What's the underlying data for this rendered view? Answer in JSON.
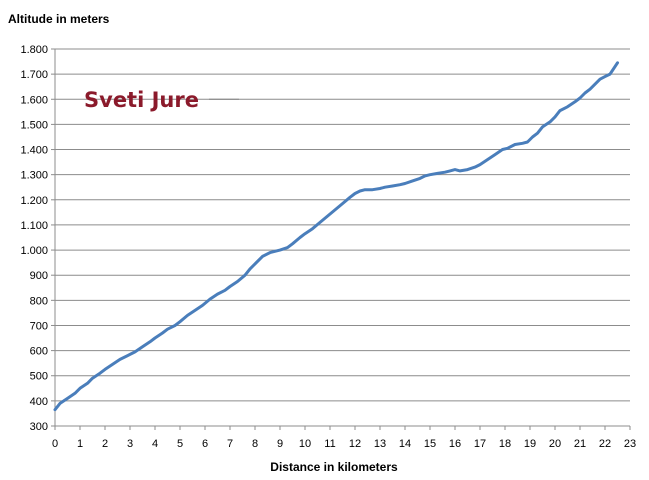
{
  "chart_data": {
    "type": "line",
    "title": "",
    "ylabel": "Altitude in meters",
    "xlabel": "Distance in kilometers",
    "annotation": "Sveti Jure",
    "xlim": [
      0,
      23
    ],
    "ylim": [
      300,
      1800
    ],
    "x_ticks": [
      "0",
      "1",
      "2",
      "3",
      "4",
      "5",
      "6",
      "7",
      "8",
      "9",
      "10",
      "11",
      "12",
      "13",
      "14",
      "15",
      "16",
      "17",
      "18",
      "19",
      "20",
      "21",
      "22",
      "23"
    ],
    "y_ticks": [
      "300",
      "400",
      "500",
      "600",
      "700",
      "800",
      "900",
      "1.000",
      "1.100",
      "1.200",
      "1.300",
      "1.400",
      "1.500",
      "1.600",
      "1.700",
      "1.800"
    ],
    "grid": "horizontal",
    "line_color": "#4a7ebb",
    "series": [
      {
        "x": [
          0.0,
          0.2,
          0.5,
          0.8,
          1.0,
          1.3,
          1.5,
          1.8,
          2.0,
          2.3,
          2.6,
          3.0,
          3.2,
          3.5,
          3.8,
          4.0,
          4.3,
          4.5,
          4.8,
          5.0,
          5.3,
          5.6,
          5.9,
          6.2,
          6.5,
          6.8,
          7.0,
          7.3,
          7.6,
          7.8,
          8.0,
          8.3,
          8.6,
          9.0,
          9.3,
          9.5,
          9.8,
          10.0,
          10.3,
          10.6,
          10.9,
          11.2,
          11.5,
          11.8,
          12.0,
          12.2,
          12.4,
          12.7,
          13.0,
          13.2,
          13.5,
          13.8,
          14.0,
          14.3,
          14.6,
          14.8,
          15.0,
          15.3,
          15.6,
          15.8,
          16.0,
          16.2,
          16.5,
          16.8,
          17.0,
          17.3,
          17.6,
          17.9,
          18.1,
          18.4,
          18.7,
          18.9,
          19.1,
          19.3,
          19.5,
          19.8,
          20.0,
          20.2,
          20.5,
          20.8,
          21.0,
          21.2,
          21.4,
          21.6,
          21.8,
          22.0,
          22.2,
          22.3,
          22.5
        ],
        "y": [
          365,
          390,
          410,
          430,
          450,
          470,
          490,
          510,
          525,
          545,
          565,
          585,
          595,
          615,
          635,
          650,
          670,
          685,
          700,
          715,
          740,
          760,
          780,
          805,
          825,
          840,
          855,
          875,
          900,
          925,
          945,
          975,
          990,
          1000,
          1010,
          1025,
          1050,
          1065,
          1085,
          1110,
          1135,
          1160,
          1185,
          1210,
          1225,
          1235,
          1240,
          1240,
          1245,
          1250,
          1255,
          1260,
          1265,
          1275,
          1285,
          1295,
          1300,
          1305,
          1310,
          1315,
          1320,
          1315,
          1320,
          1330,
          1340,
          1360,
          1380,
          1400,
          1405,
          1420,
          1425,
          1430,
          1450,
          1465,
          1490,
          1510,
          1530,
          1555,
          1570,
          1590,
          1605,
          1625,
          1640,
          1660,
          1680,
          1690,
          1700,
          1715,
          1745
        ]
      }
    ]
  }
}
